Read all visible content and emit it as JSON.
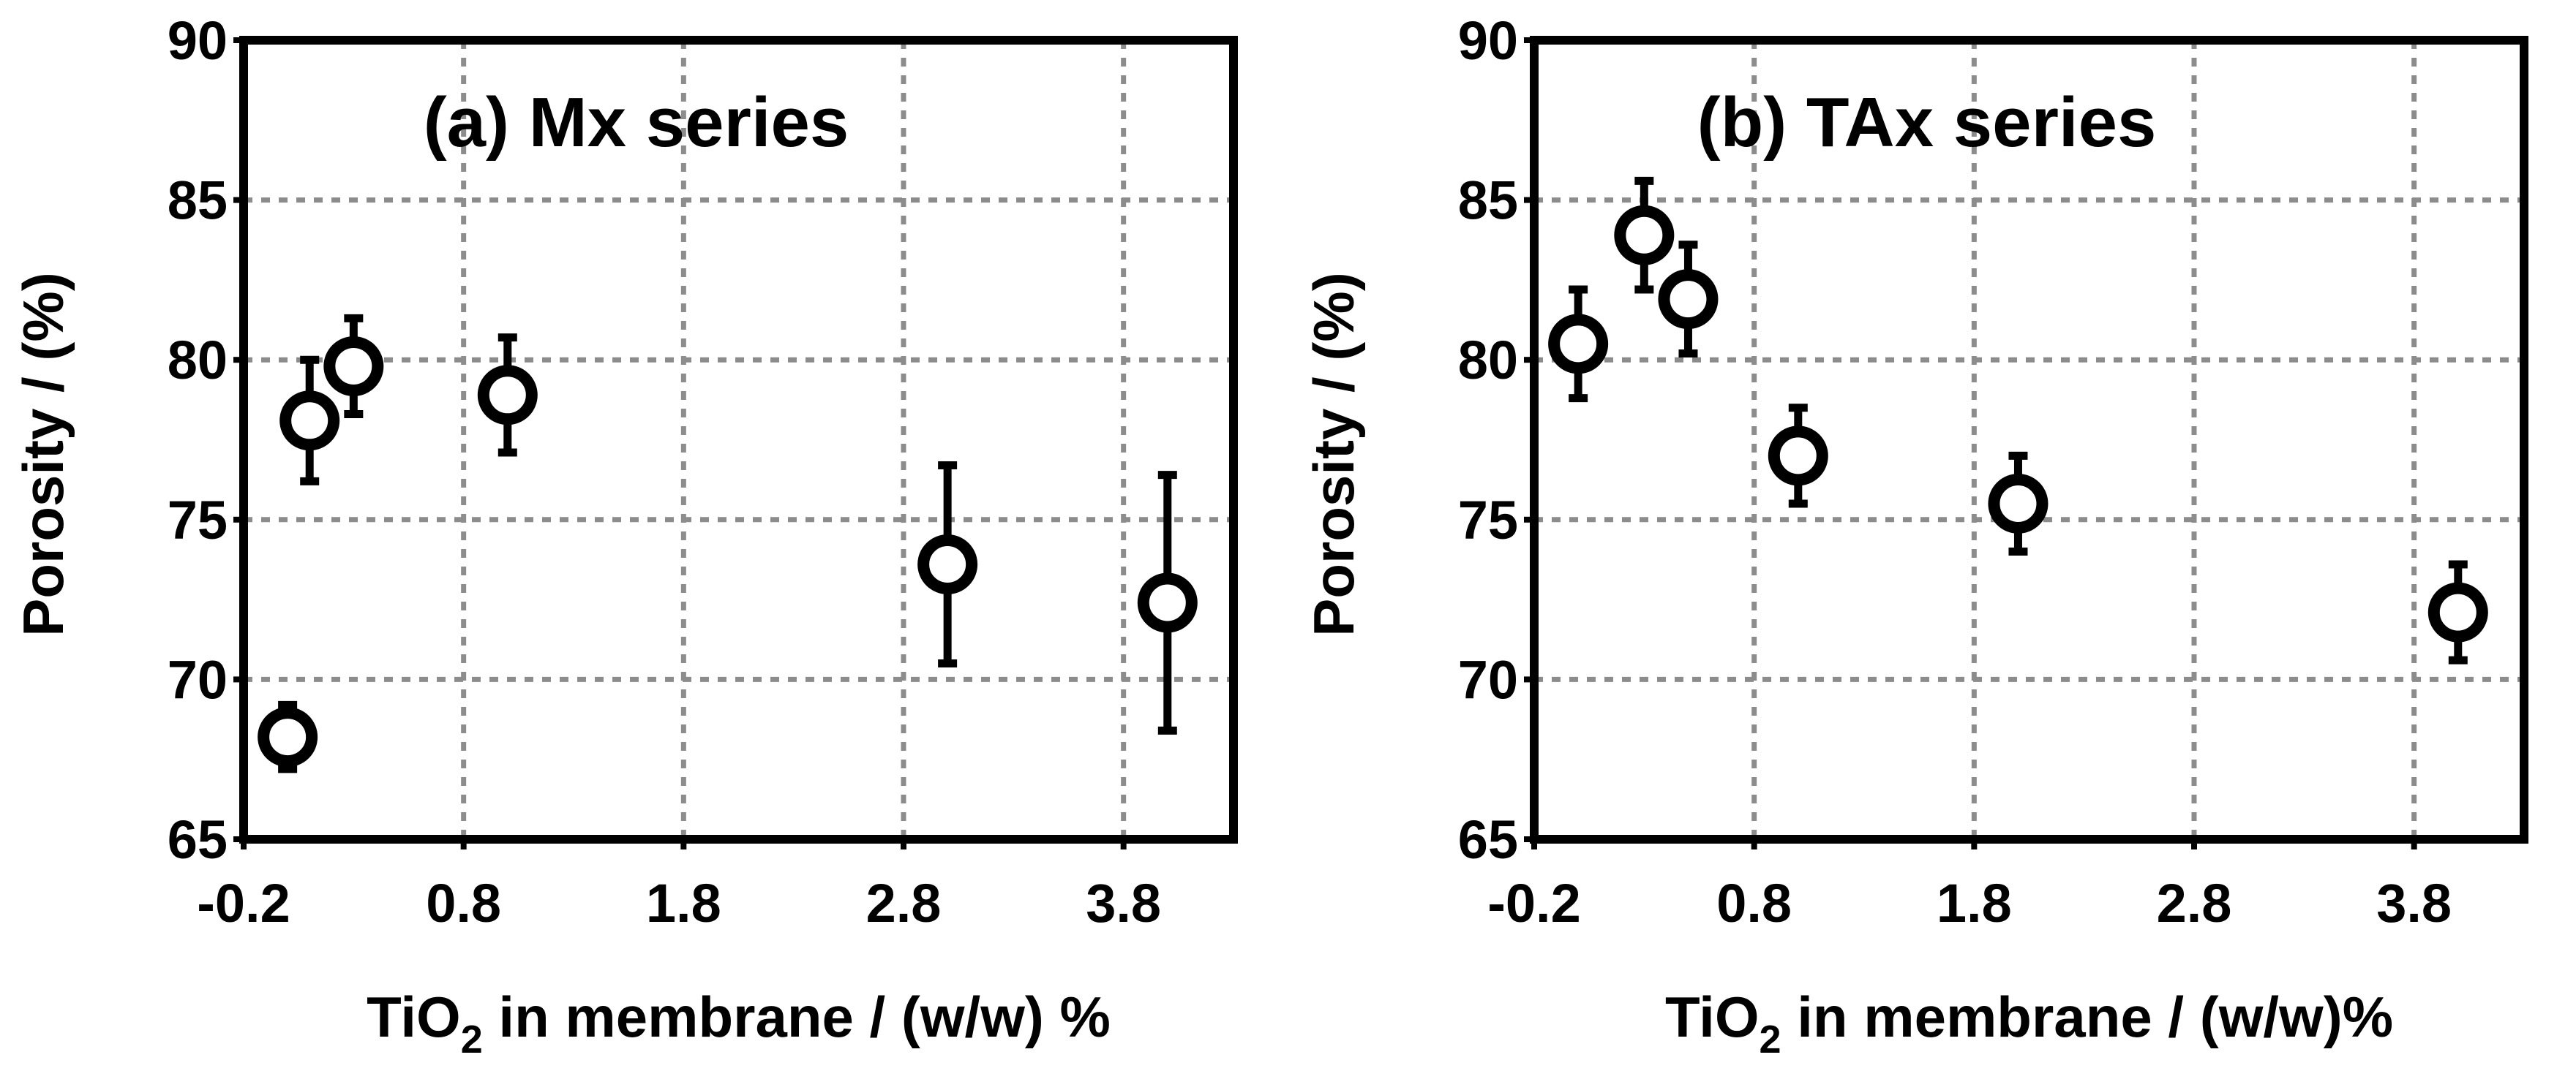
{
  "chart_data": [
    {
      "type": "scatter",
      "title": "(a) Mx series",
      "xlabel_main": "TiO",
      "xlabel_sub": "2",
      "xlabel_rest": " in membrane / (w/w) %",
      "ylabel": "Porosity / (%)",
      "xlim": [
        -0.2,
        4.3
      ],
      "ylim": [
        65,
        90
      ],
      "xticks": [
        -0.2,
        0.8,
        1.8,
        2.8,
        3.8
      ],
      "xtick_labels": [
        "-0.2",
        "0.8",
        "1.8",
        "2.8",
        "3.8"
      ],
      "yticks": [
        65,
        70,
        75,
        80,
        85,
        90
      ],
      "ytick_labels": [
        "65",
        "70",
        "75",
        "80",
        "85",
        "90"
      ],
      "grid": true,
      "series": [
        {
          "name": "Mx",
          "x": [
            0.0,
            0.1,
            0.3,
            1.0,
            3.0,
            4.0
          ],
          "y": [
            68.2,
            78.1,
            79.8,
            78.9,
            73.6,
            72.4
          ],
          "err": [
            1.0,
            1.9,
            1.5,
            1.8,
            3.1,
            4.0
          ]
        }
      ]
    },
    {
      "type": "scatter",
      "title": "(b) TAx series",
      "xlabel_main": "TiO",
      "xlabel_sub": "2",
      "xlabel_rest": " in membrane / (w/w)%",
      "ylabel": "Porosity / (%)",
      "xlim": [
        -0.2,
        4.3
      ],
      "ylim": [
        65,
        90
      ],
      "xticks": [
        -0.2,
        0.8,
        1.8,
        2.8,
        3.8
      ],
      "xtick_labels": [
        "-0.2",
        "0.8",
        "1.8",
        "2.8",
        "3.8"
      ],
      "yticks": [
        65,
        70,
        75,
        80,
        85,
        90
      ],
      "ytick_labels": [
        "65",
        "70",
        "75",
        "80",
        "85",
        "90"
      ],
      "grid": true,
      "series": [
        {
          "name": "TAx",
          "x": [
            0.0,
            0.3,
            0.5,
            1.0,
            2.0,
            4.0
          ],
          "y": [
            80.5,
            83.9,
            81.9,
            77.0,
            75.5,
            72.1
          ],
          "err": [
            1.7,
            1.7,
            1.7,
            1.5,
            1.5,
            1.5
          ]
        }
      ]
    }
  ]
}
